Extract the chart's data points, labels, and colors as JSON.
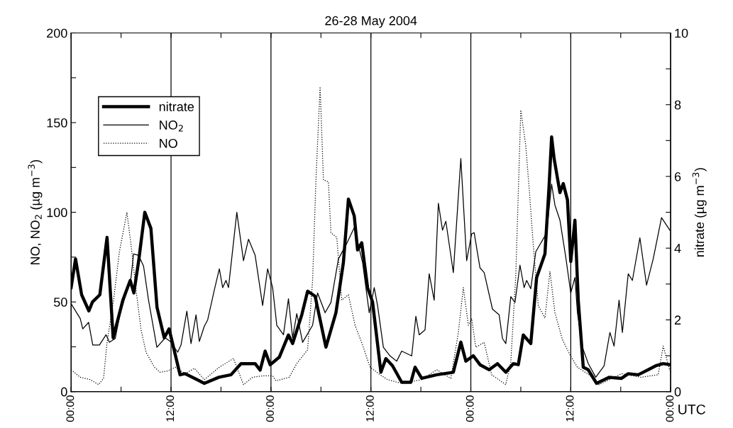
{
  "chart_data": {
    "type": "line",
    "title": "26-28 May 2004",
    "xlabel": "UTC",
    "ylabel": "NO, NO$_{2}$ (µg m$^{−3}$)",
    "y2label": "nitrate (µg m$^{−3}$)",
    "xlim": [
      "2004-05-26T00:00",
      "2004-05-29T00:00"
    ],
    "xticks": [
      {
        "value": "2004-05-26T00:00",
        "label": "00:00"
      },
      {
        "value": "2004-05-26T06:00",
        "label": null
      },
      {
        "value": "2004-05-26T12:00",
        "label": "12:00"
      },
      {
        "value": "2004-05-26T18:00",
        "label": null
      },
      {
        "value": "2004-05-27T00:00",
        "label": "00:00"
      },
      {
        "value": "2004-05-27T06:00",
        "label": null
      },
      {
        "value": "2004-05-27T12:00",
        "label": "12:00"
      },
      {
        "value": "2004-05-27T18:00",
        "label": null
      },
      {
        "value": "2004-05-28T00:00",
        "label": "00:00"
      },
      {
        "value": "2004-05-28T06:00",
        "label": null
      },
      {
        "value": "2004-05-28T12:00",
        "label": "12:00"
      },
      {
        "value": "2004-05-28T18:00",
        "label": null
      },
      {
        "value": "2004-05-29T00:00",
        "label": "00:00"
      }
    ],
    "ylim": [
      0,
      200
    ],
    "yticks": [
      0,
      {
        "value": 25,
        "label": null
      },
      50,
      {
        "value": 75,
        "label": null
      },
      100,
      {
        "value": 125,
        "label": null
      },
      150,
      {
        "value": 175,
        "label": null
      },
      200
    ],
    "y2lim": [
      0,
      10
    ],
    "y2ticks": [
      0,
      {
        "value": 1,
        "label": null
      },
      2,
      {
        "value": 3,
        "label": null
      },
      4,
      {
        "value": 5,
        "label": null
      },
      6,
      {
        "value": 7,
        "label": null
      },
      8,
      {
        "value": 9,
        "label": null
      },
      10
    ],
    "grid": "x",
    "legend": "top left",
    "marker": "none",
    "series": [
      {
        "name": "nitrate",
        "color": "#000000",
        "axis": "y2",
        "line_style": "solid",
        "x": [
          "2004-05-26T00:00",
          "2004-05-26T00:32",
          "2004-05-26T01:16",
          "2004-05-26T02:08",
          "2004-05-26T02:34",
          "2004-05-26T03:27",
          "2004-05-26T04:19",
          "2004-05-26T05:03",
          "2004-05-26T06:13",
          "2004-05-26T07:06",
          "2004-05-26T07:32",
          "2004-05-26T08:07",
          "2004-05-26T08:51",
          "2004-05-26T09:35",
          "2004-05-26T10:19",
          "2004-05-26T11:11",
          "2004-05-26T11:46",
          "2004-05-26T13:05",
          "2004-05-26T13:40",
          "2004-05-26T14:50",
          "2004-05-26T16:00",
          "2004-05-26T17:45",
          "2004-05-26T19:12",
          "2004-05-26T20:24",
          "2004-05-26T22:06",
          "2004-05-26T22:42",
          "2004-05-26T23:18",
          "2004-05-26T23:54",
          "2004-05-27T01:00",
          "2004-05-27T02:06",
          "2004-05-27T02:36",
          "2004-05-27T03:42",
          "2004-05-27T04:24",
          "2004-05-27T05:18",
          "2004-05-27T06:36",
          "2004-05-27T07:48",
          "2004-05-27T08:42",
          "2004-05-27T09:18",
          "2004-05-27T10:00",
          "2004-05-27T10:24",
          "2004-05-27T10:54",
          "2004-05-27T11:36",
          "2004-05-27T12:12",
          "2004-05-27T13:12",
          "2004-05-27T13:48",
          "2004-05-27T14:36",
          "2004-05-27T15:42",
          "2004-05-27T16:48",
          "2004-05-27T17:18",
          "2004-05-27T18:06",
          "2004-05-27T19:54",
          "2004-05-27T21:54",
          "2004-05-27T22:48",
          "2004-05-27T23:24",
          "2004-05-28T00:18",
          "2004-05-28T01:06",
          "2004-05-28T02:12",
          "2004-05-28T03:12",
          "2004-05-28T04:12",
          "2004-05-28T05:06",
          "2004-05-28T05:42",
          "2004-05-28T06:18",
          "2004-05-28T07:12",
          "2004-05-28T07:54",
          "2004-05-28T08:54",
          "2004-05-28T09:24",
          "2004-05-28T09:42",
          "2004-05-28T10:00",
          "2004-05-28T10:42",
          "2004-05-28T11:06",
          "2004-05-28T11:36",
          "2004-05-28T12:00",
          "2004-05-28T12:30",
          "2004-05-28T12:54",
          "2004-05-28T13:30",
          "2004-05-28T14:06",
          "2004-05-28T15:06",
          "2004-05-28T16:36",
          "2004-05-28T18:06",
          "2004-05-28T18:54",
          "2004-05-28T20:06",
          "2004-05-28T21:18",
          "2004-05-28T22:12",
          "2004-05-28T23:06",
          "2004-05-28T23:54"
        ],
        "values": [
          2.9,
          3.7,
          2.7,
          2.25,
          2.5,
          2.7,
          4.3,
          1.5,
          2.55,
          3.1,
          2.75,
          3.65,
          5.0,
          4.55,
          2.35,
          1.5,
          1.75,
          0.47,
          0.5,
          0.37,
          0.23,
          0.4,
          0.47,
          0.78,
          0.78,
          0.6,
          1.13,
          0.75,
          0.96,
          1.58,
          1.34,
          2.14,
          2.8,
          2.66,
          1.24,
          2.2,
          3.6,
          5.37,
          4.9,
          3.95,
          4.15,
          2.9,
          2.5,
          0.54,
          0.92,
          0.72,
          0.26,
          0.26,
          0.68,
          0.37,
          0.47,
          0.54,
          1.38,
          0.85,
          1.0,
          0.75,
          0.61,
          0.78,
          0.54,
          0.78,
          0.75,
          1.58,
          1.34,
          3.18,
          3.84,
          5.75,
          7.1,
          6.5,
          5.55,
          5.8,
          5.35,
          3.63,
          4.78,
          2.55,
          0.68,
          0.61,
          0.23,
          0.4,
          0.37,
          0.5,
          0.47,
          0.61,
          0.72,
          0.78,
          0.75
        ]
      },
      {
        "name": "NO$_{2}$",
        "color": "#000000",
        "line_style": "solid",
        "x": [
          "2004-05-26T00:00",
          "2004-05-26T01:06",
          "2004-05-26T01:24",
          "2004-05-26T02:06",
          "2004-05-26T02:36",
          "2004-05-26T03:24",
          "2004-05-26T04:12",
          "2004-05-26T04:36",
          "2004-05-26T05:18",
          "2004-05-26T05:54",
          "2004-05-26T07:12",
          "2004-05-26T07:30",
          "2004-05-26T08:06",
          "2004-05-26T08:42",
          "2004-05-26T09:18",
          "2004-05-26T10:18",
          "2004-05-26T11:18",
          "2004-05-26T11:54",
          "2004-05-26T12:48",
          "2004-05-26T13:12",
          "2004-05-26T13:54",
          "2004-05-26T14:24",
          "2004-05-26T15:00",
          "2004-05-26T15:24",
          "2004-05-26T16:00",
          "2004-05-26T16:24",
          "2004-05-26T17:12",
          "2004-05-26T17:48",
          "2004-05-26T18:12",
          "2004-05-26T18:36",
          "2004-05-26T18:54",
          "2004-05-26T19:54",
          "2004-05-26T20:42",
          "2004-05-26T21:18",
          "2004-05-26T22:06",
          "2004-05-26T23:00",
          "2004-05-26T23:36",
          "2004-05-27T00:12",
          "2004-05-27T00:42",
          "2004-05-27T01:30",
          "2004-05-27T02:06",
          "2004-05-27T02:36",
          "2004-05-27T03:06",
          "2004-05-27T03:48",
          "2004-05-27T05:00",
          "2004-05-27T05:36",
          "2004-05-27T06:30",
          "2004-05-27T07:12",
          "2004-05-27T08:06",
          "2004-05-27T09:00",
          "2004-05-27T10:00",
          "2004-05-27T11:00",
          "2004-05-27T11:48",
          "2004-05-27T12:24",
          "2004-05-27T12:48",
          "2004-05-27T13:30",
          "2004-05-27T14:18",
          "2004-05-27T15:06",
          "2004-05-27T15:42",
          "2004-05-27T16:54",
          "2004-05-27T17:24",
          "2004-05-27T17:48",
          "2004-05-27T18:30",
          "2004-05-27T19:00",
          "2004-05-27T19:36",
          "2004-05-27T20:06",
          "2004-05-27T20:36",
          "2004-05-27T21:00",
          "2004-05-27T21:54",
          "2004-05-27T22:48",
          "2004-05-27T23:30",
          "2004-05-28T00:06",
          "2004-05-28T00:24",
          "2004-05-28T01:06",
          "2004-05-28T01:36",
          "2004-05-28T02:36",
          "2004-05-28T03:24",
          "2004-05-28T03:48",
          "2004-05-28T04:12",
          "2004-05-28T04:48",
          "2004-05-28T05:18",
          "2004-05-28T05:54",
          "2004-05-28T06:24",
          "2004-05-28T06:42",
          "2004-05-28T07:12",
          "2004-05-28T07:48",
          "2004-05-28T08:36",
          "2004-05-28T09:06",
          "2004-05-28T09:42",
          "2004-05-28T10:06",
          "2004-05-28T10:42",
          "2004-05-28T11:24",
          "2004-05-28T12:00",
          "2004-05-28T12:30",
          "2004-05-28T12:48",
          "2004-05-28T13:24",
          "2004-05-28T14:06",
          "2004-05-28T15:00",
          "2004-05-28T16:00",
          "2004-05-28T16:42",
          "2004-05-28T17:12",
          "2004-05-28T17:48",
          "2004-05-28T18:12",
          "2004-05-28T18:54",
          "2004-05-28T19:24",
          "2004-05-28T20:18",
          "2004-05-28T21:06",
          "2004-05-28T21:54",
          "2004-05-28T22:54",
          "2004-05-28T23:54"
        ],
        "values": [
          49,
          40.7,
          35,
          38.6,
          26,
          26,
          31.7,
          27.5,
          29.6,
          44,
          63.6,
          76.8,
          76,
          70,
          51,
          24.7,
          30,
          28,
          22,
          26,
          44.9,
          26.8,
          42.8,
          28,
          36.5,
          40,
          56.7,
          68.5,
          58,
          62,
          58,
          100,
          73,
          85,
          76,
          48,
          68.5,
          58,
          37,
          31.7,
          51.8,
          30,
          43.5,
          27.5,
          37,
          55,
          44,
          49.7,
          74,
          81.7,
          91.4,
          72,
          44,
          58,
          48,
          24.7,
          19.9,
          17,
          22.6,
          19.9,
          42,
          31.7,
          34.4,
          65.7,
          51,
          105,
          90,
          95,
          66.4,
          130,
          73,
          88,
          88.6,
          69,
          66.4,
          46,
          42.8,
          29.6,
          26.8,
          53,
          49.7,
          70.5,
          58,
          62,
          57.4,
          78,
          84.4,
          88.6,
          115.7,
          104,
          95.6,
          75,
          55,
          63.6,
          44,
          24.7,
          15.7,
          8,
          14.3,
          33,
          25.4,
          51,
          33,
          65.7,
          62,
          85.8,
          59.4,
          74,
          97,
          90
        ]
      },
      {
        "name": "NO",
        "color": "#000000",
        "line_style": "dotted",
        "x": [
          "2004-05-26T00:00",
          "2004-05-26T01:06",
          "2004-05-26T02:18",
          "2004-05-26T03:18",
          "2004-05-26T03:54",
          "2004-05-26T04:18",
          "2004-05-26T05:06",
          "2004-05-26T05:48",
          "2004-05-26T06:42",
          "2004-05-26T07:12",
          "2004-05-26T07:48",
          "2004-05-26T08:24",
          "2004-05-26T09:00",
          "2004-05-26T10:00",
          "2004-05-26T10:42",
          "2004-05-26T11:36",
          "2004-05-26T12:30",
          "2004-05-26T13:42",
          "2004-05-26T14:48",
          "2004-05-26T16:00",
          "2004-05-26T17:48",
          "2004-05-26T19:30",
          "2004-05-26T20:42",
          "2004-05-26T21:48",
          "2004-05-26T23:00",
          "2004-05-27T00:12",
          "2004-05-27T00:36",
          "2004-05-27T02:12",
          "2004-05-27T03:06",
          "2004-05-27T04:24",
          "2004-05-27T05:00",
          "2004-05-27T05:24",
          "2004-05-27T05:54",
          "2004-05-27T06:18",
          "2004-05-27T06:54",
          "2004-05-27T07:12",
          "2004-05-27T07:54",
          "2004-05-27T08:30",
          "2004-05-27T09:18",
          "2004-05-27T10:06",
          "2004-05-27T11:00",
          "2004-05-27T11:54",
          "2004-05-27T13:06",
          "2004-05-27T14:00",
          "2004-05-27T15:42",
          "2004-05-27T18:06",
          "2004-05-27T19:54",
          "2004-05-27T21:36",
          "2004-05-27T22:30",
          "2004-05-27T23:06",
          "2004-05-27T23:42",
          "2004-05-28T00:06",
          "2004-05-28T00:36",
          "2004-05-28T01:36",
          "2004-05-28T02:30",
          "2004-05-28T04:12",
          "2004-05-28T04:48",
          "2004-05-28T05:24",
          "2004-05-28T06:00",
          "2004-05-28T06:36",
          "2004-05-28T07:00",
          "2004-05-28T07:30",
          "2004-05-28T08:06",
          "2004-05-28T08:54",
          "2004-05-28T09:30",
          "2004-05-28T10:06",
          "2004-05-28T11:00",
          "2004-05-28T11:54",
          "2004-05-28T12:48",
          "2004-05-28T14:12",
          "2004-05-28T15:24",
          "2004-05-28T18:06",
          "2004-05-28T20:24",
          "2004-05-28T22:30",
          "2004-05-28T23:06",
          "2004-05-28T23:54"
        ],
        "values": [
          12.2,
          8,
          6.7,
          3.9,
          7.4,
          26.8,
          51,
          78,
          100,
          81.7,
          56.7,
          34.4,
          22,
          13.6,
          10.8,
          11.5,
          13.6,
          10,
          13,
          6.7,
          13.6,
          18.5,
          3.9,
          8,
          8.8,
          8.8,
          6,
          8,
          15.7,
          23.3,
          62,
          118,
          170,
          118,
          117,
          88.6,
          86,
          51,
          54,
          37,
          26,
          13.6,
          9.4,
          6.7,
          4.6,
          6.7,
          12.2,
          7.4,
          33,
          58,
          37,
          40.7,
          24.7,
          27.5,
          9.4,
          3.9,
          16.4,
          65,
          157,
          137,
          113.6,
          81.7,
          48,
          41,
          67,
          44,
          29,
          20.5,
          13.6,
          9.4,
          3.9,
          10,
          8,
          9.4,
          25.4,
          11.5
        ]
      }
    ]
  }
}
